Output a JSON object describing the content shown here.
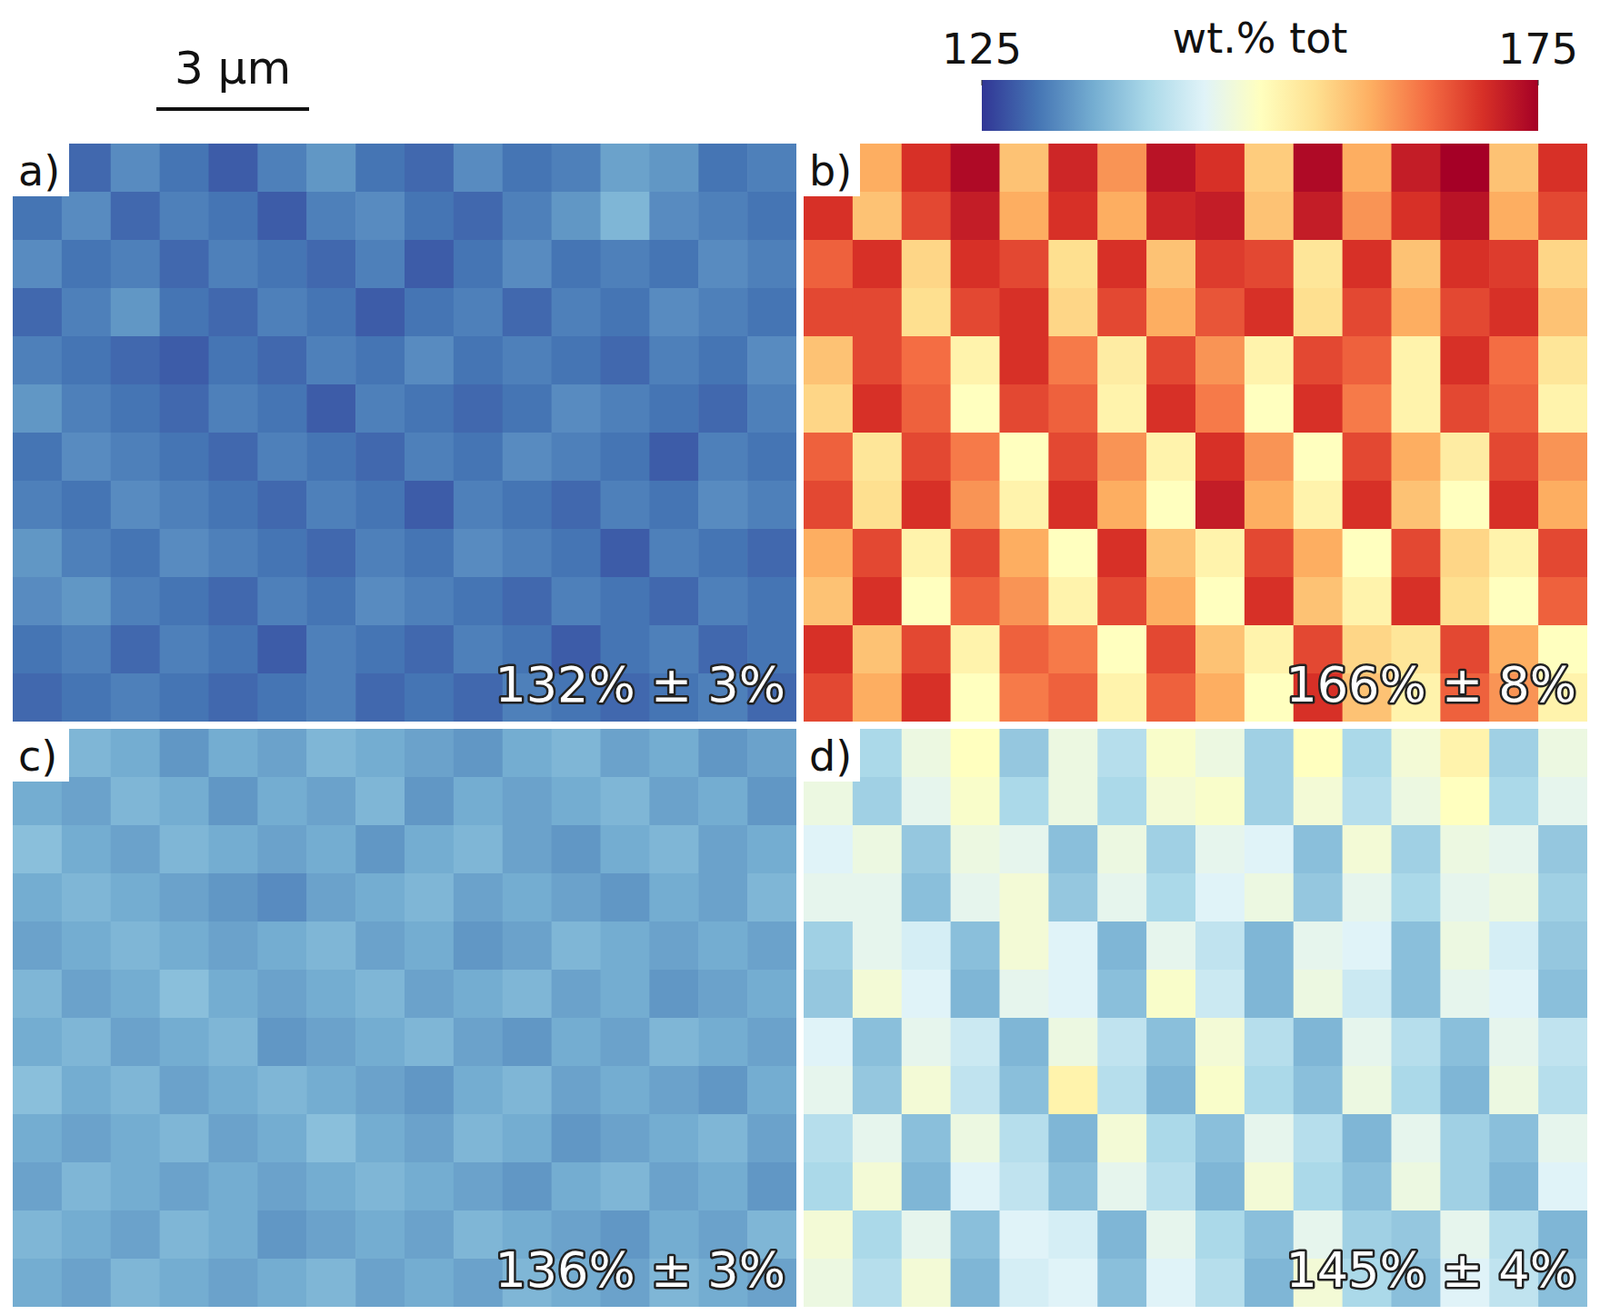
{
  "chart_data": {
    "type": "heatmap",
    "scale_bar": "3 µm",
    "colorbar_label": "wt.% tot",
    "color_range": [
      125,
      175
    ],
    "color_ticks": [
      125,
      175
    ],
    "panels": [
      {
        "label": "a)",
        "annotation": "132% ± 3%",
        "cells": [
          [
            131,
            129,
            132,
            130,
            128,
            131,
            133,
            130,
            129,
            132,
            130,
            131,
            134,
            133,
            130,
            131
          ],
          [
            130,
            132,
            129,
            131,
            130,
            128,
            131,
            132,
            130,
            129,
            131,
            133,
            136,
            132,
            131,
            130
          ],
          [
            132,
            130,
            131,
            129,
            131,
            130,
            129,
            131,
            128,
            130,
            132,
            130,
            131,
            130,
            132,
            131
          ],
          [
            129,
            131,
            133,
            130,
            129,
            131,
            130,
            128,
            130,
            131,
            129,
            131,
            130,
            132,
            131,
            130
          ],
          [
            131,
            130,
            129,
            128,
            130,
            129,
            131,
            130,
            132,
            130,
            131,
            130,
            129,
            131,
            130,
            132
          ],
          [
            133,
            131,
            130,
            129,
            131,
            130,
            128,
            131,
            130,
            129,
            130,
            132,
            131,
            130,
            129,
            131
          ],
          [
            130,
            132,
            131,
            130,
            129,
            131,
            130,
            129,
            131,
            130,
            132,
            131,
            130,
            128,
            131,
            130
          ],
          [
            131,
            130,
            132,
            131,
            130,
            129,
            131,
            130,
            128,
            131,
            130,
            129,
            131,
            130,
            132,
            131
          ],
          [
            133,
            131,
            130,
            132,
            131,
            130,
            129,
            131,
            130,
            132,
            131,
            130,
            128,
            131,
            130,
            129
          ],
          [
            132,
            133,
            131,
            130,
            129,
            131,
            130,
            132,
            131,
            130,
            129,
            131,
            130,
            129,
            131,
            130
          ],
          [
            130,
            131,
            129,
            131,
            130,
            128,
            131,
            130,
            129,
            131,
            130,
            128,
            130,
            131,
            129,
            130
          ],
          [
            129,
            130,
            131,
            130,
            129,
            130,
            131,
            129,
            130,
            129,
            131,
            130,
            129,
            130,
            131,
            129
          ]
        ]
      },
      {
        "label": "b)",
        "annotation": "166% ± 8%",
        "cells": [
          [
            172,
            160,
            170,
            174,
            158,
            171,
            162,
            173,
            170,
            157,
            174,
            160,
            172,
            175,
            158,
            170
          ],
          [
            170,
            158,
            168,
            172,
            160,
            170,
            160,
            171,
            172,
            158,
            172,
            162,
            170,
            173,
            160,
            168
          ],
          [
            166,
            170,
            156,
            170,
            168,
            155,
            170,
            158,
            169,
            168,
            154,
            170,
            158,
            170,
            169,
            156
          ],
          [
            168,
            168,
            155,
            168,
            170,
            156,
            168,
            160,
            167,
            170,
            155,
            168,
            160,
            168,
            170,
            158
          ],
          [
            158,
            168,
            165,
            152,
            170,
            164,
            153,
            168,
            162,
            152,
            168,
            166,
            152,
            170,
            165,
            154
          ],
          [
            156,
            170,
            166,
            150,
            168,
            166,
            152,
            170,
            164,
            150,
            170,
            164,
            152,
            168,
            166,
            152
          ],
          [
            166,
            154,
            168,
            164,
            150,
            168,
            162,
            152,
            170,
            162,
            150,
            168,
            160,
            153,
            168,
            162
          ],
          [
            168,
            155,
            170,
            162,
            152,
            170,
            160,
            150,
            172,
            160,
            152,
            170,
            158,
            150,
            170,
            160
          ],
          [
            160,
            168,
            152,
            168,
            160,
            150,
            170,
            158,
            152,
            168,
            160,
            150,
            168,
            156,
            152,
            168
          ],
          [
            158,
            170,
            150,
            166,
            162,
            152,
            168,
            160,
            150,
            170,
            158,
            152,
            170,
            155,
            150,
            166
          ],
          [
            170,
            158,
            168,
            152,
            166,
            164,
            150,
            168,
            158,
            152,
            168,
            156,
            154,
            168,
            160,
            150
          ],
          [
            168,
            160,
            170,
            150,
            164,
            166,
            152,
            166,
            160,
            150,
            170,
            158,
            152,
            166,
            162,
            152
          ]
        ]
      },
      {
        "label": "c)",
        "annotation": "136% ± 3%",
        "cells": [
          [
            134,
            136,
            135,
            133,
            135,
            134,
            136,
            135,
            134,
            133,
            135,
            136,
            134,
            135,
            133,
            134
          ],
          [
            135,
            134,
            136,
            135,
            133,
            135,
            134,
            136,
            133,
            135,
            134,
            135,
            136,
            134,
            135,
            133
          ],
          [
            137,
            135,
            134,
            136,
            135,
            134,
            135,
            133,
            135,
            136,
            134,
            133,
            135,
            136,
            134,
            135
          ],
          [
            135,
            136,
            135,
            134,
            133,
            132,
            134,
            135,
            136,
            134,
            135,
            134,
            133,
            135,
            134,
            136
          ],
          [
            134,
            135,
            136,
            135,
            134,
            135,
            136,
            134,
            135,
            133,
            134,
            136,
            135,
            134,
            135,
            134
          ],
          [
            136,
            134,
            135,
            137,
            135,
            134,
            135,
            136,
            134,
            135,
            136,
            134,
            135,
            133,
            134,
            135
          ],
          [
            135,
            136,
            134,
            135,
            136,
            133,
            134,
            135,
            136,
            134,
            133,
            135,
            134,
            136,
            135,
            134
          ],
          [
            137,
            135,
            136,
            134,
            135,
            136,
            135,
            134,
            133,
            135,
            136,
            134,
            135,
            134,
            133,
            135
          ],
          [
            135,
            134,
            135,
            136,
            134,
            135,
            137,
            135,
            134,
            136,
            135,
            133,
            134,
            135,
            136,
            134
          ],
          [
            134,
            136,
            135,
            134,
            135,
            134,
            135,
            136,
            135,
            134,
            133,
            135,
            136,
            134,
            135,
            133
          ],
          [
            136,
            135,
            134,
            136,
            135,
            133,
            134,
            135,
            134,
            136,
            135,
            134,
            133,
            135,
            134,
            136
          ],
          [
            135,
            134,
            136,
            135,
            134,
            135,
            136,
            134,
            135,
            134,
            136,
            135,
            134,
            136,
            135,
            134
          ]
        ]
      },
      {
        "label": "d)",
        "annotation": "145% ± 4%",
        "cells": [
          [
            148,
            140,
            147,
            150,
            138,
            147,
            141,
            149,
            147,
            139,
            150,
            140,
            148,
            152,
            139,
            147
          ],
          [
            147,
            139,
            146,
            149,
            140,
            147,
            140,
            148,
            149,
            139,
            148,
            141,
            147,
            150,
            140,
            146
          ],
          [
            145,
            147,
            138,
            147,
            146,
            137,
            147,
            139,
            146,
            145,
            137,
            148,
            139,
            147,
            146,
            138
          ],
          [
            146,
            146,
            137,
            146,
            148,
            138,
            146,
            140,
            145,
            147,
            138,
            146,
            140,
            146,
            147,
            139
          ],
          [
            139,
            146,
            144,
            137,
            148,
            145,
            136,
            146,
            142,
            136,
            146,
            145,
            137,
            147,
            144,
            138
          ],
          [
            138,
            148,
            145,
            136,
            146,
            145,
            137,
            149,
            143,
            136,
            147,
            143,
            137,
            146,
            145,
            137
          ],
          [
            145,
            137,
            146,
            143,
            136,
            147,
            142,
            137,
            148,
            141,
            136,
            146,
            141,
            137,
            146,
            142
          ],
          [
            146,
            138,
            148,
            142,
            137,
            152,
            141,
            136,
            149,
            140,
            137,
            147,
            140,
            136,
            147,
            141
          ],
          [
            141,
            146,
            137,
            147,
            141,
            136,
            148,
            140,
            137,
            146,
            141,
            136,
            146,
            139,
            137,
            146
          ],
          [
            140,
            148,
            136,
            145,
            142,
            137,
            146,
            141,
            136,
            148,
            140,
            137,
            147,
            139,
            136,
            145
          ],
          [
            148,
            140,
            146,
            137,
            145,
            144,
            136,
            146,
            140,
            137,
            146,
            139,
            138,
            146,
            141,
            136
          ],
          [
            147,
            141,
            148,
            136,
            144,
            145,
            137,
            145,
            141,
            136,
            148,
            140,
            137,
            145,
            142,
            137
          ]
        ]
      }
    ]
  }
}
